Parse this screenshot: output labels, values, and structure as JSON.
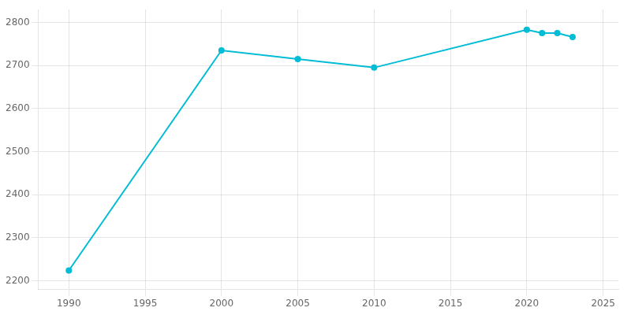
{
  "chart_data": {
    "type": "line",
    "x": [
      1990,
      2000,
      2005,
      2010,
      2020,
      2021,
      2022,
      2023
    ],
    "values": [
      2224,
      2735,
      2715,
      2695,
      2783,
      2775,
      2775,
      2766
    ],
    "color": "#00bcd4",
    "marker": "circle",
    "xlim": [
      1988,
      2026
    ],
    "ylim": [
      2180,
      2830
    ],
    "xticks": [
      1990,
      1995,
      2000,
      2005,
      2010,
      2015,
      2020,
      2025
    ],
    "yticks": [
      2200,
      2300,
      2400,
      2500,
      2600,
      2700,
      2800
    ],
    "grid": true
  }
}
